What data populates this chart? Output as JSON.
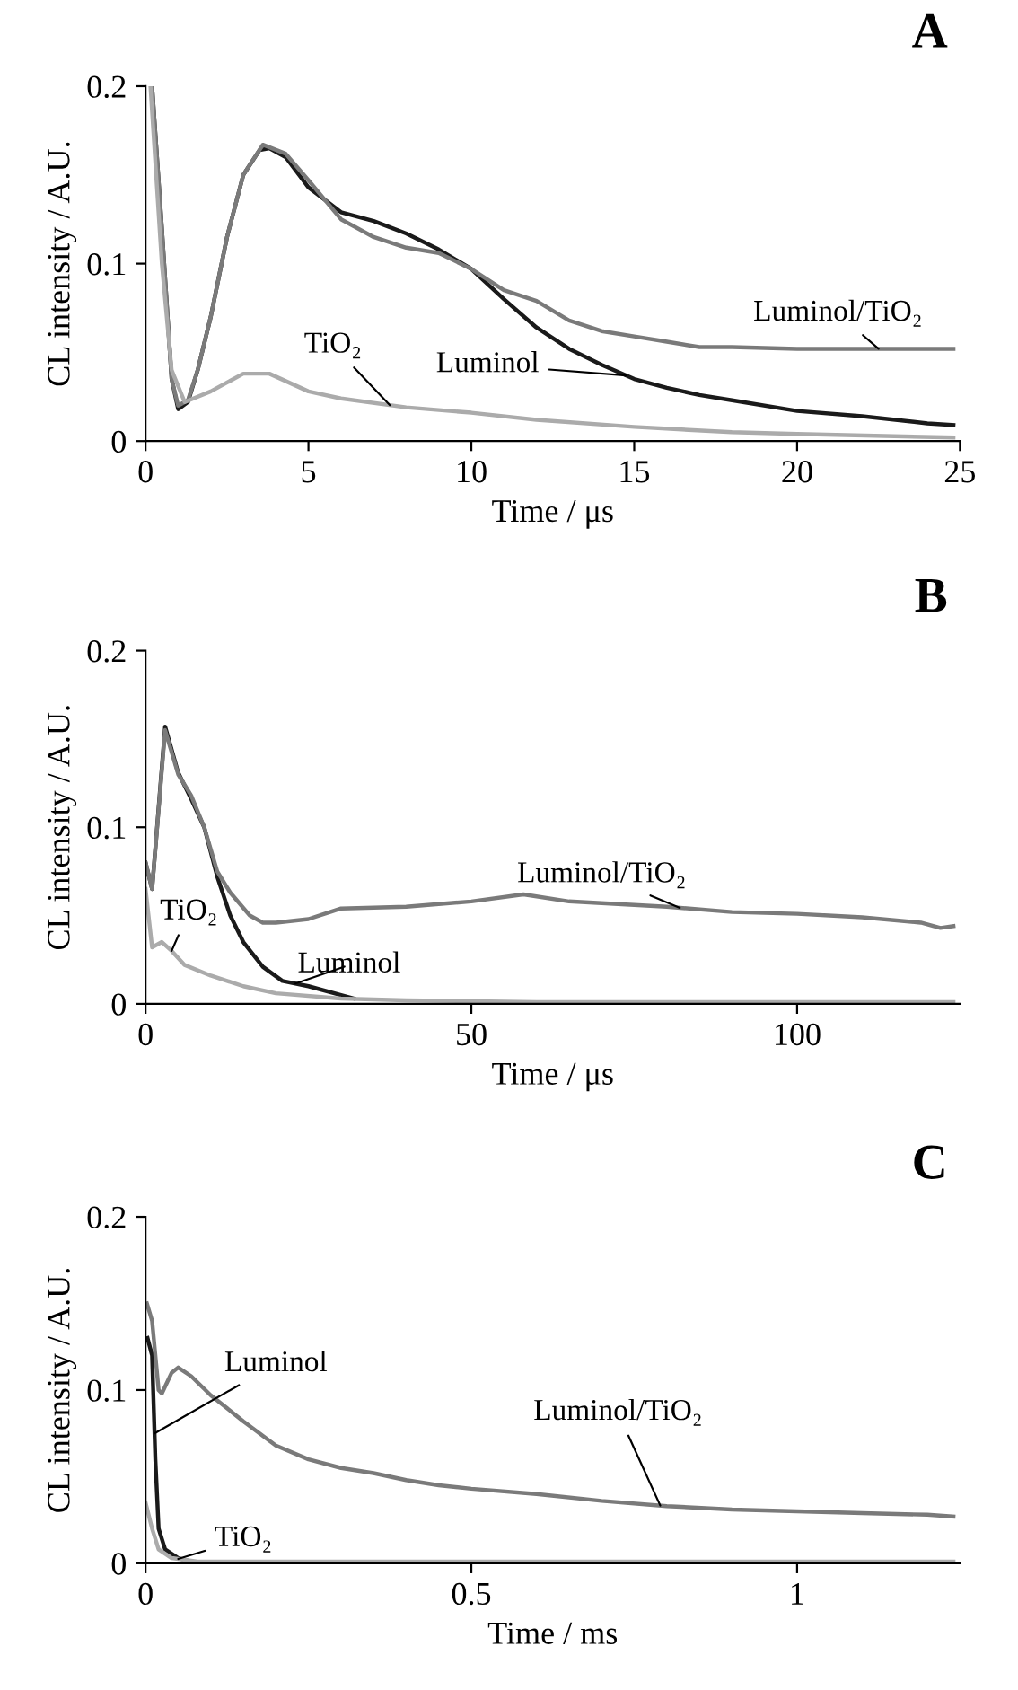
{
  "chart_data": [
    {
      "type": "line",
      "title": "A",
      "xlabel": "Time / μs",
      "ylabel": "CL intensity / A.U.",
      "xlim": [
        0,
        25
      ],
      "ylim": [
        0,
        0.2
      ],
      "xticks": [
        0,
        5,
        10,
        15,
        20,
        25
      ],
      "yticks": [
        0,
        0.1,
        0.2
      ],
      "grid": false,
      "legend": false,
      "series": [
        {
          "name": "Luminol",
          "color": "#1a1a1a",
          "x": [
            0.2,
            0.5,
            0.8,
            1.0,
            1.3,
            1.6,
            2.0,
            2.5,
            3.0,
            3.5,
            3.8,
            4.3,
            5,
            6,
            7,
            8,
            9,
            10,
            11,
            12,
            13,
            14,
            15,
            16,
            17,
            18,
            20,
            22,
            24,
            24.8
          ],
          "values": [
            0.2,
            0.12,
            0.035,
            0.018,
            0.022,
            0.04,
            0.07,
            0.115,
            0.15,
            0.164,
            0.165,
            0.16,
            0.143,
            0.129,
            0.124,
            0.117,
            0.108,
            0.097,
            0.08,
            0.064,
            0.052,
            0.043,
            0.035,
            0.03,
            0.026,
            0.023,
            0.017,
            0.014,
            0.01,
            0.009
          ]
        },
        {
          "name": "Luminol/TiO₂",
          "color": "#7a7a7a",
          "x": [
            0.2,
            0.5,
            0.8,
            1.0,
            1.3,
            1.6,
            2.0,
            2.5,
            3.0,
            3.6,
            4.3,
            5,
            6,
            7,
            8,
            9,
            10,
            11,
            12,
            13,
            14,
            15,
            16,
            17,
            18,
            20,
            22,
            24.8
          ],
          "values": [
            0.2,
            0.12,
            0.035,
            0.02,
            0.023,
            0.04,
            0.07,
            0.115,
            0.15,
            0.167,
            0.162,
            0.147,
            0.125,
            0.115,
            0.109,
            0.106,
            0.097,
            0.085,
            0.079,
            0.068,
            0.062,
            0.059,
            0.056,
            0.053,
            0.053,
            0.052,
            0.052,
            0.052
          ]
        },
        {
          "name": "TiO₂",
          "color": "#ababab",
          "x": [
            0.15,
            0.5,
            0.8,
            1.2,
            2,
            3,
            3.8,
            5,
            6,
            8,
            10,
            12,
            15,
            18,
            20,
            24.8
          ],
          "values": [
            0.2,
            0.1,
            0.04,
            0.022,
            0.028,
            0.038,
            0.038,
            0.028,
            0.024,
            0.019,
            0.016,
            0.012,
            0.008,
            0.005,
            0.004,
            0.002
          ]
        }
      ]
    },
    {
      "type": "line",
      "title": "B",
      "xlabel": "Time / μs",
      "ylabel": "CL intensity / A.U.",
      "xlim": [
        0,
        125
      ],
      "ylim": [
        0,
        0.2
      ],
      "xticks": [
        0,
        50,
        100
      ],
      "yticks": [
        0,
        0.1,
        0.2
      ],
      "grid": false,
      "legend": false,
      "series": [
        {
          "name": "Luminol",
          "color": "#1a1a1a",
          "x": [
            0,
            1,
            3,
            5,
            7,
            9,
            11,
            13,
            15,
            18,
            21,
            25,
            30,
            32
          ],
          "values": [
            0.08,
            0.065,
            0.157,
            0.131,
            0.116,
            0.1,
            0.072,
            0.05,
            0.035,
            0.021,
            0.013,
            0.01,
            0.005,
            0.003
          ]
        },
        {
          "name": "Luminol/TiO₂",
          "color": "#7a7a7a",
          "x": [
            0,
            1,
            3,
            5,
            7,
            9,
            11,
            13,
            16,
            18,
            20,
            25,
            30,
            40,
            50,
            58,
            65,
            80,
            90,
            100,
            110,
            119,
            122,
            124
          ],
          "values": [
            0.08,
            0.065,
            0.155,
            0.13,
            0.118,
            0.1,
            0.075,
            0.063,
            0.05,
            0.046,
            0.046,
            0.048,
            0.054,
            0.055,
            0.058,
            0.062,
            0.058,
            0.055,
            0.052,
            0.051,
            0.049,
            0.046,
            0.043,
            0.044
          ]
        },
        {
          "name": "TiO₂",
          "color": "#ababab",
          "x": [
            0,
            1,
            2.5,
            4,
            6,
            10,
            15,
            20,
            30,
            40,
            60,
            124
          ],
          "values": [
            0.065,
            0.032,
            0.035,
            0.03,
            0.022,
            0.016,
            0.01,
            0.006,
            0.003,
            0.002,
            0.001,
            0.001
          ]
        }
      ]
    },
    {
      "type": "line",
      "title": "C",
      "xlabel": "Time / ms",
      "ylabel": "CL intensity / A.U.",
      "xlim": [
        0,
        1.25
      ],
      "ylim": [
        0,
        0.2
      ],
      "xticks": [
        0,
        0.5,
        1
      ],
      "yticks": [
        0,
        0.1,
        0.2
      ],
      "grid": false,
      "legend": false,
      "series": [
        {
          "name": "Luminol",
          "color": "#1a1a1a",
          "x": [
            0.003,
            0.01,
            0.015,
            0.02,
            0.03,
            0.05,
            0.07
          ],
          "values": [
            0.13,
            0.12,
            0.06,
            0.02,
            0.008,
            0.003,
            0.001
          ]
        },
        {
          "name": "Luminol/TiO₂",
          "color": "#7a7a7a",
          "x": [
            0.002,
            0.01,
            0.02,
            0.025,
            0.04,
            0.05,
            0.07,
            0.1,
            0.15,
            0.2,
            0.25,
            0.3,
            0.35,
            0.4,
            0.45,
            0.5,
            0.6,
            0.7,
            0.8,
            0.9,
            1.0,
            1.1,
            1.2,
            1.24
          ],
          "values": [
            0.15,
            0.14,
            0.1,
            0.098,
            0.11,
            0.113,
            0.108,
            0.097,
            0.082,
            0.068,
            0.06,
            0.055,
            0.052,
            0.048,
            0.045,
            0.043,
            0.04,
            0.036,
            0.033,
            0.031,
            0.03,
            0.029,
            0.028,
            0.027
          ]
        },
        {
          "name": "TiO₂",
          "color": "#ababab",
          "x": [
            0,
            0.01,
            0.02,
            0.04,
            0.08,
            1.24
          ],
          "values": [
            0.035,
            0.02,
            0.008,
            0.003,
            0.001,
            0.001
          ]
        }
      ]
    }
  ]
}
